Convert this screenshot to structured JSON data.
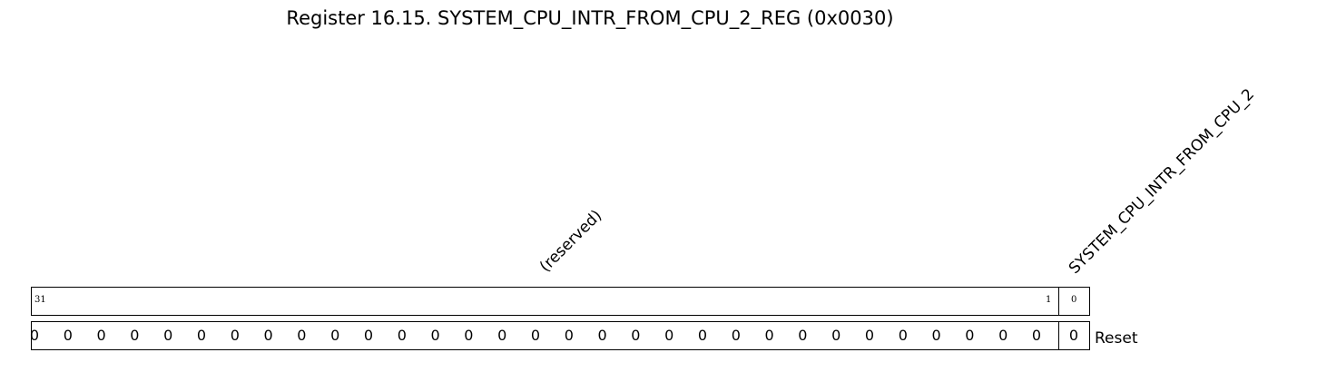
{
  "caption": "Register 16.15. SYSTEM_CPU_INTR_FROM_CPU_2_REG (0x0030)",
  "fields": [
    {
      "name": "(reserved)",
      "bit_high": "31",
      "bit_low": "1"
    },
    {
      "name": "SYSTEM_CPU_INTR_FROM_CPU_2",
      "bit": "0"
    }
  ],
  "reset": {
    "label": "Reset",
    "values": [
      "0",
      "0",
      "0",
      "0",
      "0",
      "0",
      "0",
      "0",
      "0",
      "0",
      "0",
      "0",
      "0",
      "0",
      "0",
      "0",
      "0",
      "0",
      "0",
      "0",
      "0",
      "0",
      "0",
      "0",
      "0",
      "0",
      "0",
      "0",
      "0",
      "0",
      "0",
      "0"
    ]
  }
}
